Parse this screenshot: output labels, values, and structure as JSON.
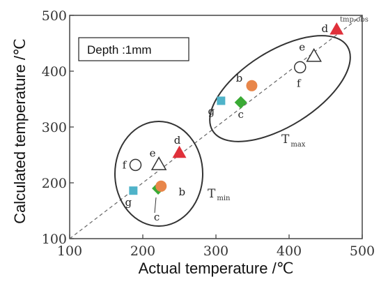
{
  "chart_data": {
    "type": "scatter",
    "title": "",
    "xlabel": "Actual temperature /℃",
    "ylabel": "Calculated temperature /℃",
    "xlim": [
      100,
      500
    ],
    "ylim": [
      100,
      500
    ],
    "xticks": [
      "100",
      "200",
      "300",
      "400",
      "500"
    ],
    "yticks": [
      "100",
      "200",
      "300",
      "400",
      "500"
    ],
    "annotation_box": "Depth :1mm",
    "reference_line": {
      "label": "tmp-obs",
      "from": [
        100,
        100
      ],
      "to": [
        500,
        500
      ]
    },
    "groups": [
      {
        "main": "T",
        "sub": "min"
      },
      {
        "main": "T",
        "sub": "max"
      }
    ],
    "points": [
      {
        "label": "f",
        "marker": "circle-open",
        "color": "#ffffff",
        "x": 190,
        "y": 232,
        "group": "min"
      },
      {
        "label": "e",
        "marker": "triangle-open",
        "color": "#ffffff",
        "x": 222,
        "y": 233,
        "group": "min"
      },
      {
        "label": "d",
        "marker": "triangle",
        "color": "#e0303a",
        "x": 250,
        "y": 254,
        "group": "min"
      },
      {
        "label": "g",
        "marker": "square",
        "color": "#4fb3c9",
        "x": 187,
        "y": 186,
        "group": "min"
      },
      {
        "label": "c",
        "marker": "diamond",
        "color": "#3aaa35",
        "x": 221,
        "y": 190,
        "group": "min"
      },
      {
        "label": "b",
        "marker": "circle",
        "color": "#e8864a",
        "x": 225,
        "y": 194,
        "group": "min"
      },
      {
        "label": "g",
        "marker": "square",
        "color": "#4fb3c9",
        "x": 307,
        "y": 347,
        "group": "max"
      },
      {
        "label": "c",
        "marker": "diamond",
        "color": "#3aaa35",
        "x": 334,
        "y": 344,
        "group": "max"
      },
      {
        "label": "b",
        "marker": "circle",
        "color": "#e8864a",
        "x": 349,
        "y": 374,
        "group": "max"
      },
      {
        "label": "f",
        "marker": "circle-open",
        "color": "#ffffff",
        "x": 415,
        "y": 407,
        "group": "max"
      },
      {
        "label": "e",
        "marker": "triangle-open",
        "color": "#ffffff",
        "x": 434,
        "y": 427,
        "group": "max"
      },
      {
        "label": "d",
        "marker": "triangle",
        "color": "#e0303a",
        "x": 465,
        "y": 475,
        "group": "max"
      }
    ]
  }
}
